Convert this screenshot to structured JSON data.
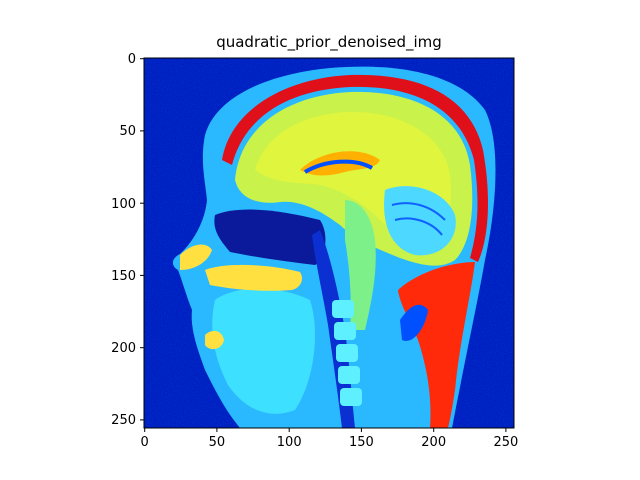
{
  "title": "quadratic_prior_denoised_img",
  "image": {
    "description_colormap": "jet",
    "x_range": [
      0,
      256
    ],
    "y_range": [
      0,
      256
    ],
    "y_inverted": true
  },
  "axes": {
    "x_ticks": [
      "0",
      "50",
      "100",
      "150",
      "200",
      "250"
    ],
    "y_ticks": [
      "0",
      "50",
      "100",
      "150",
      "200",
      "250"
    ]
  }
}
